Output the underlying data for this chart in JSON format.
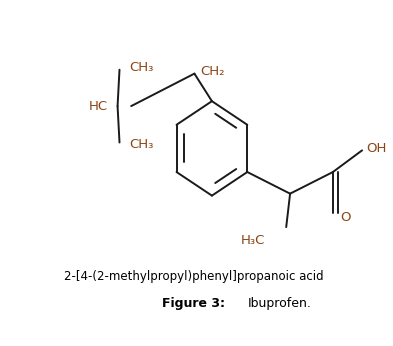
{
  "title": "2-[4-(2-methylpropyl)phenyl]propanoic acid",
  "figure_label": "Figure 3:",
  "figure_name": "Ibuprofen.",
  "bond_color": "#1a1a1a",
  "text_color": "#8B4513",
  "caption_color": "#000000",
  "background_color": "#ffffff"
}
